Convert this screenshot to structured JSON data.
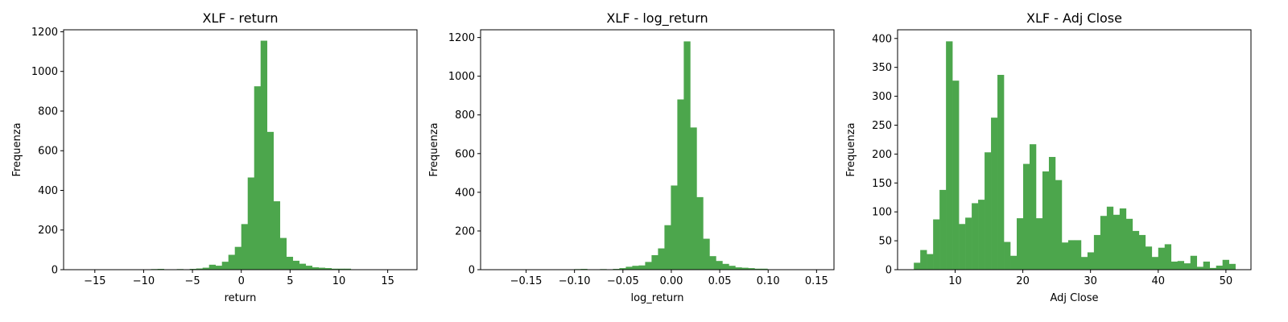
{
  "chart_data": [
    {
      "type": "bar",
      "title": "XLF - return",
      "xlabel": "return",
      "ylabel": "Frequenza",
      "color": "#4ca64c",
      "xlim": [
        -18.2,
        18.0
      ],
      "ylim": [
        0,
        1210
      ],
      "xticks": [
        -15,
        -10,
        -5,
        0,
        5,
        10,
        15
      ],
      "yticks": [
        0,
        200,
        400,
        600,
        800,
        1000,
        1200
      ],
      "bin_start": -16.5,
      "bin_width": 0.66,
      "values": [
        2,
        0,
        0,
        1,
        1,
        0,
        0,
        1,
        0,
        0,
        0,
        3,
        4,
        1,
        2,
        3,
        2,
        4,
        6,
        10,
        25,
        20,
        40,
        75,
        115,
        230,
        465,
        925,
        1155,
        695,
        345,
        160,
        65,
        45,
        30,
        20,
        12,
        10,
        8,
        5,
        5,
        5,
        1,
        1,
        2,
        2,
        1,
        1,
        1,
        1
      ]
    },
    {
      "type": "bar",
      "title": "XLF - log_return",
      "xlabel": "log_return",
      "ylabel": "Frequenza",
      "color": "#4ca64c",
      "xlim": [
        -0.197,
        0.168
      ],
      "ylim": [
        0,
        1240
      ],
      "xticks": [
        -0.15,
        -0.1,
        -0.05,
        0.0,
        0.05,
        0.1,
        0.15
      ],
      "xtick_labels": [
        "−0.15",
        "−0.10",
        "−0.05",
        "0.00",
        "0.05",
        "0.10",
        "0.15"
      ],
      "yticks": [
        0,
        200,
        400,
        600,
        800,
        1000,
        1200
      ],
      "bin_start": -0.18,
      "bin_width": 0.00665,
      "values": [
        2,
        0,
        0,
        0,
        1,
        1,
        0,
        0,
        1,
        0,
        0,
        0,
        3,
        4,
        1,
        2,
        3,
        2,
        4,
        8,
        15,
        20,
        22,
        40,
        75,
        110,
        230,
        435,
        880,
        1180,
        735,
        375,
        160,
        70,
        45,
        30,
        20,
        12,
        10,
        8,
        5,
        5,
        2,
        1,
        2,
        2,
        1,
        1,
        1,
        1
      ]
    },
    {
      "type": "bar",
      "title": "XLF - Adj Close",
      "xlabel": "Adj Close",
      "ylabel": "Frequenza",
      "color": "#4ca64c",
      "xlim": [
        1.5,
        53.7
      ],
      "ylim": [
        0,
        415
      ],
      "xticks": [
        10,
        20,
        30,
        40,
        50
      ],
      "yticks": [
        0,
        50,
        100,
        150,
        200,
        250,
        300,
        350,
        400
      ],
      "bin_start": 3.9,
      "bin_width": 0.95,
      "values": [
        12,
        34,
        27,
        87,
        138,
        395,
        327,
        79,
        90,
        115,
        121,
        203,
        263,
        337,
        48,
        24,
        89,
        183,
        217,
        89,
        170,
        195,
        155,
        47,
        51,
        51,
        22,
        30,
        60,
        93,
        109,
        95,
        106,
        88,
        67,
        60,
        40,
        22,
        38,
        44,
        14,
        15,
        11,
        24,
        5,
        14,
        3,
        7,
        17,
        10
      ]
    }
  ]
}
